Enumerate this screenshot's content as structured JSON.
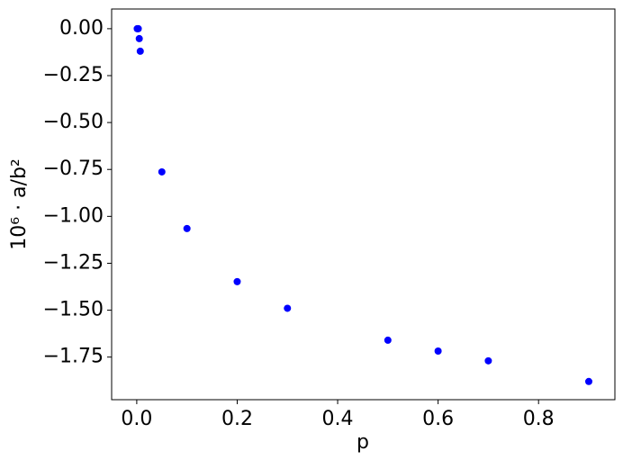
{
  "chart_data": {
    "type": "scatter",
    "xlabel": "p",
    "ylabel": "10⁶ · a/b²",
    "series": [
      {
        "color": "#0000ff",
        "x": [
          0.001,
          0.003,
          0.005,
          0.007,
          0.05,
          0.1,
          0.2,
          0.3,
          0.5,
          0.6,
          0.7,
          0.9
        ],
        "values": [
          0.0,
          0.0,
          -0.053,
          -0.12,
          -0.763,
          -1.065,
          -1.348,
          -1.49,
          -1.66,
          -1.718,
          -1.77,
          -1.88
        ]
      }
    ],
    "xlim": [
      -0.05,
      0.952
    ],
    "ylim": [
      -1.977,
      0.105
    ],
    "xticks": [
      {
        "value": 0.0,
        "label": "0.0"
      },
      {
        "value": 0.2,
        "label": "0.2"
      },
      {
        "value": 0.4,
        "label": "0.4"
      },
      {
        "value": 0.6,
        "label": "0.6"
      },
      {
        "value": 0.8,
        "label": "0.8"
      }
    ],
    "yticks": [
      {
        "value": 0.0,
        "label": "0.00"
      },
      {
        "value": -0.25,
        "label": "−0.25"
      },
      {
        "value": -0.5,
        "label": "−0.50"
      },
      {
        "value": -0.75,
        "label": "−0.75"
      },
      {
        "value": -1.0,
        "label": "−1.00"
      },
      {
        "value": -1.25,
        "label": "−1.25"
      },
      {
        "value": -1.5,
        "label": "−1.50"
      },
      {
        "value": -1.75,
        "label": "−1.75"
      }
    ],
    "grid": false
  }
}
